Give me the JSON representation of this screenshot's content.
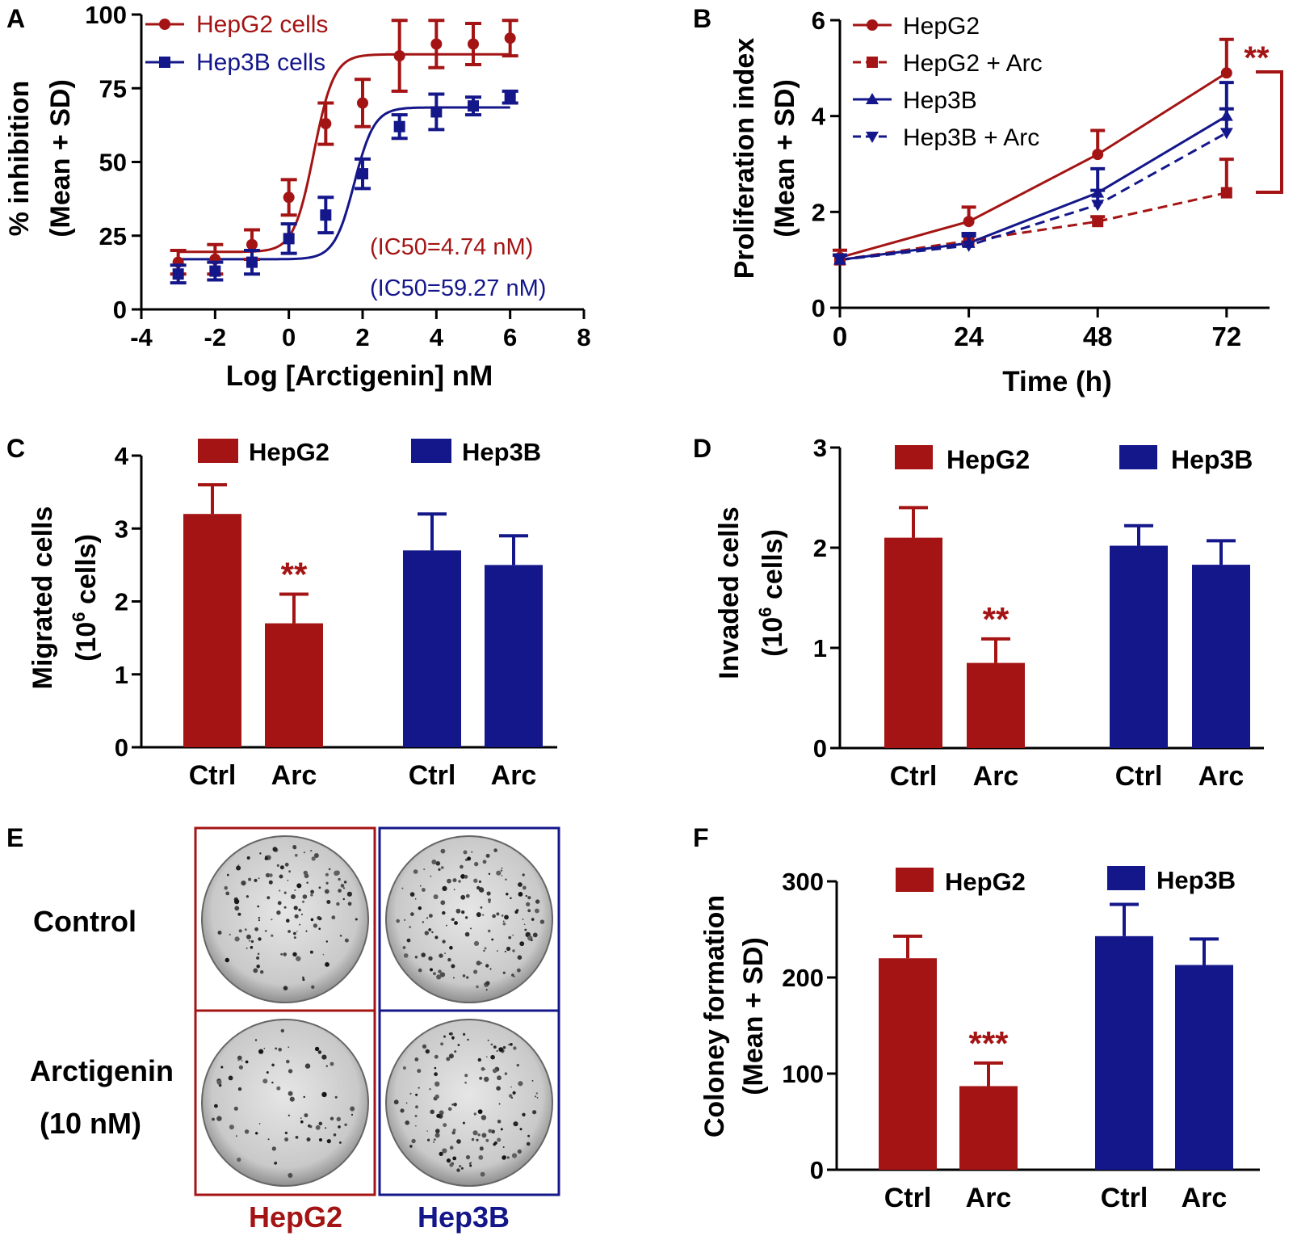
{
  "colors": {
    "red": "#A41414",
    "blue": "#14178A",
    "black": "#000000"
  },
  "panel_labels": [
    "A",
    "B",
    "C",
    "D",
    "E",
    "F"
  ],
  "chart_data": [
    {
      "id": "A",
      "type": "scatter",
      "xlabel": "Log [Arctigenin] nM",
      "ylabel_line1": "% inhibition",
      "ylabel_line2": "(Mean + SD)",
      "xlim": [
        -4,
        8
      ],
      "ylim": [
        0,
        100
      ],
      "xticks": [
        -4,
        -2,
        0,
        2,
        4,
        6,
        8
      ],
      "yticks": [
        0,
        25,
        50,
        75,
        100
      ],
      "series": [
        {
          "name": "HepG2 cells",
          "color": "#A41414",
          "marker": "circle",
          "x": [
            -3,
            -2,
            -1,
            0,
            1,
            2,
            3,
            4,
            5,
            6
          ],
          "y": [
            16,
            17,
            22,
            38,
            63,
            70,
            86,
            90,
            90,
            92
          ],
          "err": [
            4,
            5,
            5,
            6,
            7,
            8,
            12,
            8,
            7,
            6
          ],
          "fit": {
            "bottom": 19.5,
            "top": 86.5,
            "logIC50": 0.676,
            "hill": 1.6
          }
        },
        {
          "name": "Hep3B cells",
          "color": "#14178A",
          "marker": "square",
          "x": [
            -3,
            -2,
            -1,
            0,
            1,
            2,
            3,
            4,
            5,
            6
          ],
          "y": [
            12,
            13,
            16,
            24,
            32,
            46,
            62,
            67,
            69,
            72
          ],
          "err": [
            3,
            3,
            4,
            5,
            6,
            5,
            4,
            6,
            3,
            2
          ],
          "fit": {
            "bottom": 17,
            "top": 68.5,
            "logIC50": 1.773,
            "hill": 1.6
          }
        }
      ],
      "annotations": [
        "(IC50=4.74 nM)",
        "(IC50=59.27 nM)"
      ]
    },
    {
      "id": "B",
      "type": "line",
      "xlabel": "Time (h)",
      "ylabel_line1": "Proliferation index",
      "ylabel_line2": "(Mean + SD)",
      "xlim": [
        0,
        80
      ],
      "ylim": [
        0,
        6
      ],
      "xticks": [
        0,
        24,
        48,
        72
      ],
      "yticks": [
        0,
        2,
        4,
        6
      ],
      "x": [
        0,
        24,
        48,
        72
      ],
      "series": [
        {
          "name": "HepG2",
          "color": "#A41414",
          "marker": "circle",
          "dashed": false,
          "y": [
            1.05,
            1.8,
            3.2,
            4.9
          ],
          "err": [
            0.15,
            0.3,
            0.5,
            0.7
          ]
        },
        {
          "name": "HepG2 + Arc",
          "color": "#A41414",
          "marker": "square",
          "dashed": true,
          "y": [
            1.0,
            1.4,
            1.8,
            2.4
          ],
          "err": [
            0.1,
            0.15,
            0.1,
            0.7
          ]
        },
        {
          "name": "Hep3B",
          "color": "#14178A",
          "marker": "triangle-up",
          "dashed": false,
          "y": [
            1.0,
            1.35,
            2.4,
            4.0
          ],
          "err": [
            0.1,
            0.2,
            0.5,
            0.7
          ]
        },
        {
          "name": "Hep3B + Arc",
          "color": "#14178A",
          "marker": "triangle-down",
          "dashed": true,
          "y": [
            1.0,
            1.3,
            2.15,
            3.65
          ],
          "err": [
            0.1,
            0.2,
            0.3,
            0.5
          ]
        }
      ],
      "significance": "**"
    },
    {
      "id": "C",
      "type": "bar",
      "ylabel_line1": "Migrated cells",
      "ylabel_prefix": "(10",
      "ylabel_sup": "6",
      "ylabel_suffix": " cells)",
      "ylim": [
        0,
        4
      ],
      "yticks": [
        0,
        1,
        2,
        3,
        4
      ],
      "legend": [
        "HepG2",
        "Hep3B"
      ],
      "categories": [
        "Ctrl",
        "Arc",
        "Ctrl",
        "Arc"
      ],
      "values": [
        3.2,
        1.7,
        2.7,
        2.5
      ],
      "err": [
        0.4,
        0.4,
        0.5,
        0.4
      ],
      "groups": [
        "HepG2",
        "HepG2",
        "Hep3B",
        "Hep3B"
      ],
      "significance": "**"
    },
    {
      "id": "D",
      "type": "bar",
      "ylabel_line1": "Invaded cells",
      "ylabel_prefix": "(10",
      "ylabel_sup": "6",
      "ylabel_suffix": " cells)",
      "ylim": [
        0,
        3
      ],
      "yticks": [
        0,
        1,
        2,
        3
      ],
      "legend": [
        "HepG2",
        "Hep3B"
      ],
      "categories": [
        "Ctrl",
        "Arc",
        "Ctrl",
        "Arc"
      ],
      "values": [
        2.1,
        0.85,
        2.02,
        1.83
      ],
      "err": [
        0.3,
        0.24,
        0.2,
        0.24
      ],
      "groups": [
        "HepG2",
        "HepG2",
        "Hep3B",
        "Hep3B"
      ],
      "significance": "**"
    },
    {
      "id": "F",
      "type": "bar",
      "ylabel_line1": "Coloney formation",
      "ylabel_line2": "(Mean + SD)",
      "ylim": [
        0,
        300
      ],
      "yticks": [
        0,
        100,
        200,
        300
      ],
      "legend": [
        "HepG2",
        "Hep3B"
      ],
      "categories": [
        "Ctrl",
        "Arc",
        "Ctrl",
        "Arc"
      ],
      "values": [
        220,
        87,
        243,
        213
      ],
      "err": [
        23,
        24,
        33,
        27
      ],
      "groups": [
        "HepG2",
        "HepG2",
        "Hep3B",
        "Hep3B"
      ],
      "significance": "***"
    }
  ],
  "panel_e": {
    "row_labels": [
      "Control",
      "Arctigenin",
      "(10 nM)"
    ],
    "column_labels": [
      "HepG2",
      "Hep3B"
    ]
  }
}
